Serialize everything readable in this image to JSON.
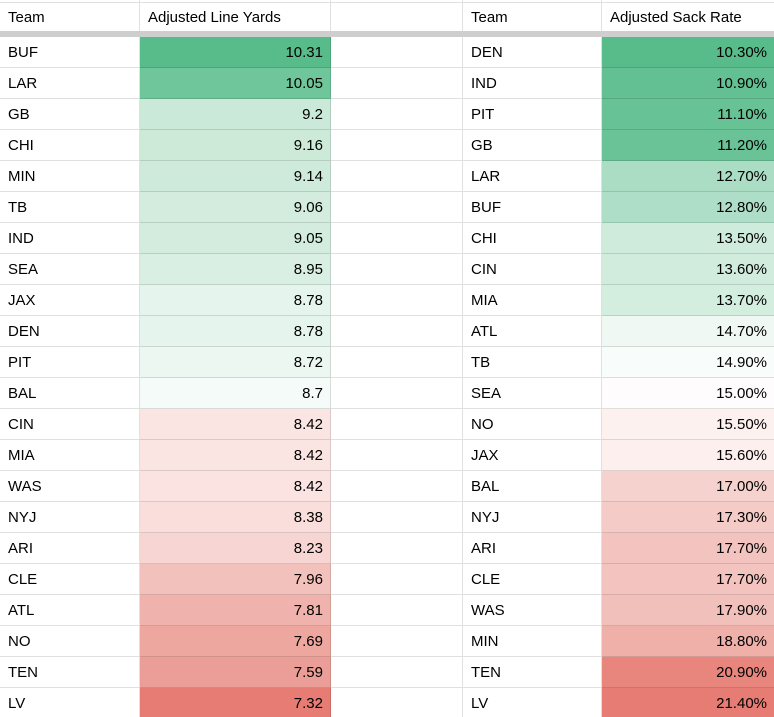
{
  "app": {
    "kind": "spreadsheet",
    "frozen_bar_color": "#cecece",
    "color_scale": {
      "min_red": "#e67c73",
      "mid_white": "#ffffff",
      "max_green": "#57bb8a"
    }
  },
  "left_table": {
    "headers": {
      "team": "Team",
      "value": "Adjusted Line Yards"
    },
    "rows": [
      {
        "team": "BUF",
        "value": "10.31",
        "bg": "#57bb8a"
      },
      {
        "team": "LAR",
        "value": "10.05",
        "bg": "#6fc69b"
      },
      {
        "team": "GB",
        "value": "9.2",
        "bg": "#cbe9d8"
      },
      {
        "team": "CHI",
        "value": "9.16",
        "bg": "#cdead9"
      },
      {
        "team": "MIN",
        "value": "9.14",
        "bg": "#ceeada"
      },
      {
        "team": "TB",
        "value": "9.06",
        "bg": "#d3ecde"
      },
      {
        "team": "IND",
        "value": "9.05",
        "bg": "#d3ecde"
      },
      {
        "team": "SEA",
        "value": "8.95",
        "bg": "#d9efe3"
      },
      {
        "team": "JAX",
        "value": "8.78",
        "bg": "#e5f4ec"
      },
      {
        "team": "DEN",
        "value": "8.78",
        "bg": "#e5f4ec"
      },
      {
        "team": "PIT",
        "value": "8.72",
        "bg": "#ecf7f1"
      },
      {
        "team": "BAL",
        "value": "8.7",
        "bg": "#f5fbf8"
      },
      {
        "team": "CIN",
        "value": "8.42",
        "bg": "#fbe5e3"
      },
      {
        "team": "MIA",
        "value": "8.42",
        "bg": "#fbe5e3"
      },
      {
        "team": "WAS",
        "value": "8.42",
        "bg": "#fae3e1"
      },
      {
        "team": "NYJ",
        "value": "8.38",
        "bg": "#f9dedc"
      },
      {
        "team": "ARI",
        "value": "8.23",
        "bg": "#f7d5d2"
      },
      {
        "team": "CLE",
        "value": "7.96",
        "bg": "#f2c1bc"
      },
      {
        "team": "ATL",
        "value": "7.81",
        "bg": "#efb2ac"
      },
      {
        "team": "NO",
        "value": "7.69",
        "bg": "#eda79f"
      },
      {
        "team": "TEN",
        "value": "7.59",
        "bg": "#eb9e97"
      },
      {
        "team": "LV",
        "value": "7.32",
        "bg": "#e67c73"
      }
    ]
  },
  "right_table": {
    "headers": {
      "team": "Team",
      "value": "Adjusted Sack Rate"
    },
    "rows": [
      {
        "team": "DEN",
        "value": "10.30%",
        "bg": "#57bb8a"
      },
      {
        "team": "IND",
        "value": "10.90%",
        "bg": "#63c093"
      },
      {
        "team": "PIT",
        "value": "11.10%",
        "bg": "#67c295"
      },
      {
        "team": "GB",
        "value": "11.20%",
        "bg": "#69c397"
      },
      {
        "team": "LAR",
        "value": "12.70%",
        "bg": "#abddc5"
      },
      {
        "team": "BUF",
        "value": "12.80%",
        "bg": "#aedec7"
      },
      {
        "team": "CHI",
        "value": "13.50%",
        "bg": "#cfebdc"
      },
      {
        "team": "CIN",
        "value": "13.60%",
        "bg": "#d1ecdd"
      },
      {
        "team": "MIA",
        "value": "13.70%",
        "bg": "#d3eddf"
      },
      {
        "team": "ATL",
        "value": "14.70%",
        "bg": "#eff8f3"
      },
      {
        "team": "TB",
        "value": "14.90%",
        "bg": "#f8fcfa"
      },
      {
        "team": "SEA",
        "value": "15.00%",
        "bg": "#fefcfc"
      },
      {
        "team": "NO",
        "value": "15.50%",
        "bg": "#fdf1ef"
      },
      {
        "team": "JAX",
        "value": "15.60%",
        "bg": "#fdefed"
      },
      {
        "team": "BAL",
        "value": "17.00%",
        "bg": "#f6d2ce"
      },
      {
        "team": "NYJ",
        "value": "17.30%",
        "bg": "#f5cbc7"
      },
      {
        "team": "ARI",
        "value": "17.70%",
        "bg": "#f3c4bf"
      },
      {
        "team": "CLE",
        "value": "17.70%",
        "bg": "#f3c4bf"
      },
      {
        "team": "WAS",
        "value": "17.90%",
        "bg": "#f2c0bb"
      },
      {
        "team": "MIN",
        "value": "18.80%",
        "bg": "#efb0a9"
      },
      {
        "team": "TEN",
        "value": "20.90%",
        "bg": "#e8867d"
      },
      {
        "team": "LV",
        "value": "21.40%",
        "bg": "#e67c73"
      }
    ]
  }
}
